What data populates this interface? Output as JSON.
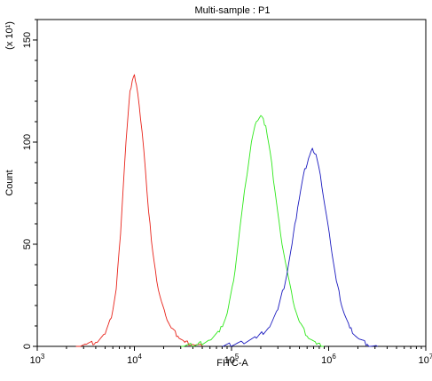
{
  "chart_data": {
    "type": "line",
    "title": "Multi-sample : P1",
    "xlabel": "FITC-A",
    "ylabel": "Count",
    "y_multiplier_label": "(x 10¹)",
    "x_scale": "log",
    "xlim": [
      1000,
      10000000
    ],
    "ylim": [
      0,
      160
    ],
    "x_ticks": [
      {
        "value": 1000,
        "base": "10",
        "exp": "3"
      },
      {
        "value": 10000,
        "base": "10",
        "exp": "4"
      },
      {
        "value": 100000,
        "base": "10",
        "exp": "5"
      },
      {
        "value": 1000000,
        "base": "10",
        "exp": "6"
      },
      {
        "value": 10000000,
        "base": "10",
        "exp": "7"
      }
    ],
    "y_ticks": [
      {
        "value": 0,
        "label": "0"
      },
      {
        "value": 50,
        "label": "50"
      },
      {
        "value": 100,
        "label": "100"
      },
      {
        "value": 150,
        "label": "150"
      }
    ],
    "grid": false,
    "legend": "none",
    "series": [
      {
        "color": "#e8231a",
        "points": [
          [
            2500,
            0
          ],
          [
            3200,
            1
          ],
          [
            4000,
            2
          ],
          [
            5000,
            6
          ],
          [
            5800,
            14
          ],
          [
            6500,
            28
          ],
          [
            7200,
            55
          ],
          [
            7900,
            88
          ],
          [
            8500,
            110
          ],
          [
            9000,
            125
          ],
          [
            9500,
            130
          ],
          [
            10000,
            133
          ],
          [
            10500,
            128
          ],
          [
            11200,
            118
          ],
          [
            12000,
            105
          ],
          [
            13000,
            86
          ],
          [
            14000,
            66
          ],
          [
            15500,
            46
          ],
          [
            17000,
            32
          ],
          [
            19000,
            22
          ],
          [
            21000,
            15
          ],
          [
            24000,
            9
          ],
          [
            28000,
            5
          ],
          [
            33000,
            2
          ],
          [
            40000,
            1
          ],
          [
            50000,
            0
          ]
        ]
      },
      {
        "color": "#2ee81a",
        "points": [
          [
            30000,
            0
          ],
          [
            45000,
            1
          ],
          [
            60000,
            3
          ],
          [
            75000,
            7
          ],
          [
            90000,
            16
          ],
          [
            105000,
            32
          ],
          [
            120000,
            55
          ],
          [
            140000,
            80
          ],
          [
            160000,
            100
          ],
          [
            180000,
            110
          ],
          [
            200000,
            113
          ],
          [
            225000,
            108
          ],
          [
            250000,
            95
          ],
          [
            280000,
            76
          ],
          [
            320000,
            55
          ],
          [
            370000,
            38
          ],
          [
            430000,
            22
          ],
          [
            500000,
            12
          ],
          [
            600000,
            5
          ],
          [
            750000,
            1
          ],
          [
            900000,
            0
          ]
        ]
      },
      {
        "color": "#1a1abf",
        "points": [
          [
            80000,
            0
          ],
          [
            130000,
            2
          ],
          [
            180000,
            4
          ],
          [
            240000,
            9
          ],
          [
            300000,
            18
          ],
          [
            360000,
            32
          ],
          [
            420000,
            50
          ],
          [
            480000,
            68
          ],
          [
            550000,
            84
          ],
          [
            620000,
            92
          ],
          [
            680000,
            97
          ],
          [
            740000,
            94
          ],
          [
            820000,
            84
          ],
          [
            920000,
            68
          ],
          [
            1050000,
            50
          ],
          [
            1200000,
            32
          ],
          [
            1400000,
            18
          ],
          [
            1650000,
            9
          ],
          [
            2000000,
            4
          ],
          [
            2500000,
            1
          ],
          [
            3200000,
            0
          ]
        ]
      }
    ]
  }
}
